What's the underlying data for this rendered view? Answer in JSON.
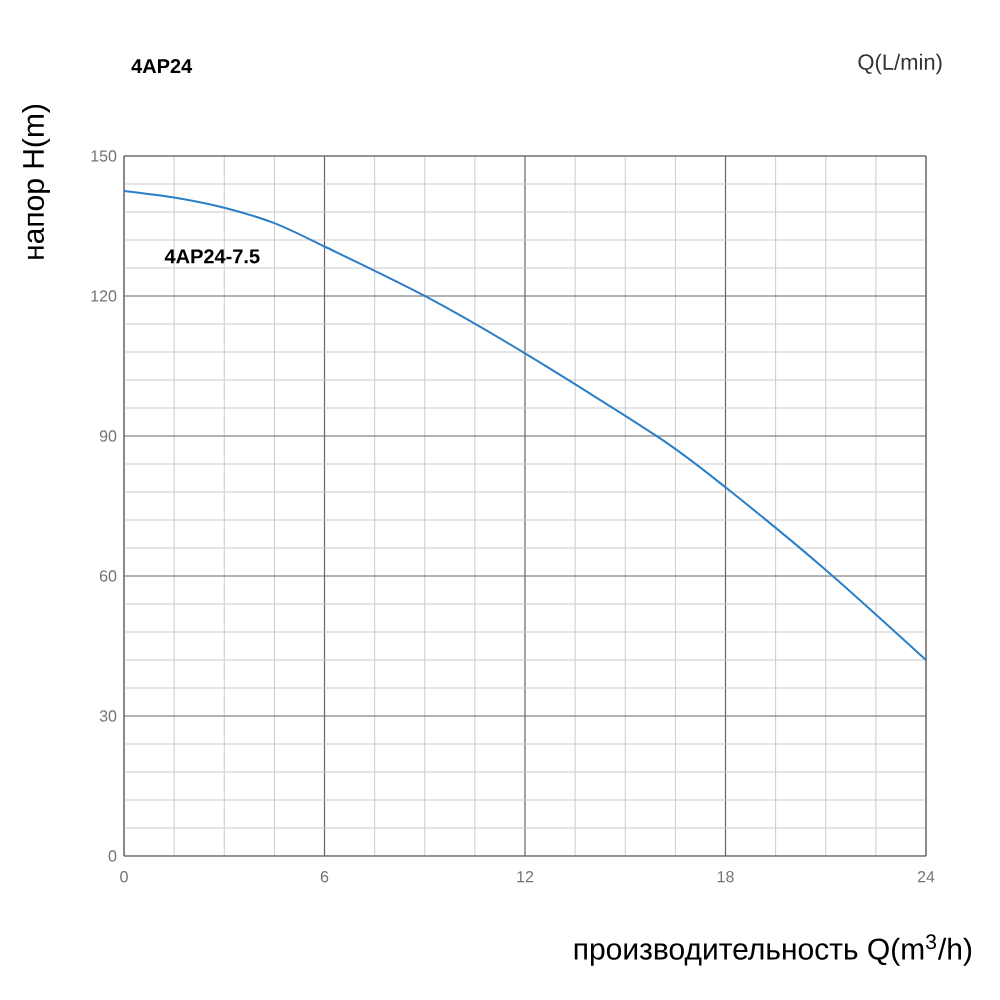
{
  "chart_data": {
    "type": "line",
    "title": "4AP24",
    "x2label": "Q(L/min)",
    "xlabel": "производительность Q(m$^{3}$/h)",
    "ylabel": "напор H(m)",
    "x": [
      0,
      1.5,
      3,
      4.5,
      6,
      9,
      12,
      16,
      18,
      21,
      24
    ],
    "series": [
      {
        "name": "4AP24-7.5",
        "color": "#2a7fc8",
        "values": [
          142.5,
          141.1,
          138.9,
          135.6,
          130.6,
          120,
          107.7,
          89.7,
          79,
          61.3,
          42
        ]
      }
    ],
    "xlim": [
      0,
      24
    ],
    "xticks": [
      0,
      6,
      12,
      18,
      24
    ],
    "ylim": [
      0,
      150
    ],
    "yticks": [
      0,
      30,
      60,
      90,
      120,
      150
    ],
    "grid": true,
    "marker": "none",
    "line_style": "solid"
  }
}
